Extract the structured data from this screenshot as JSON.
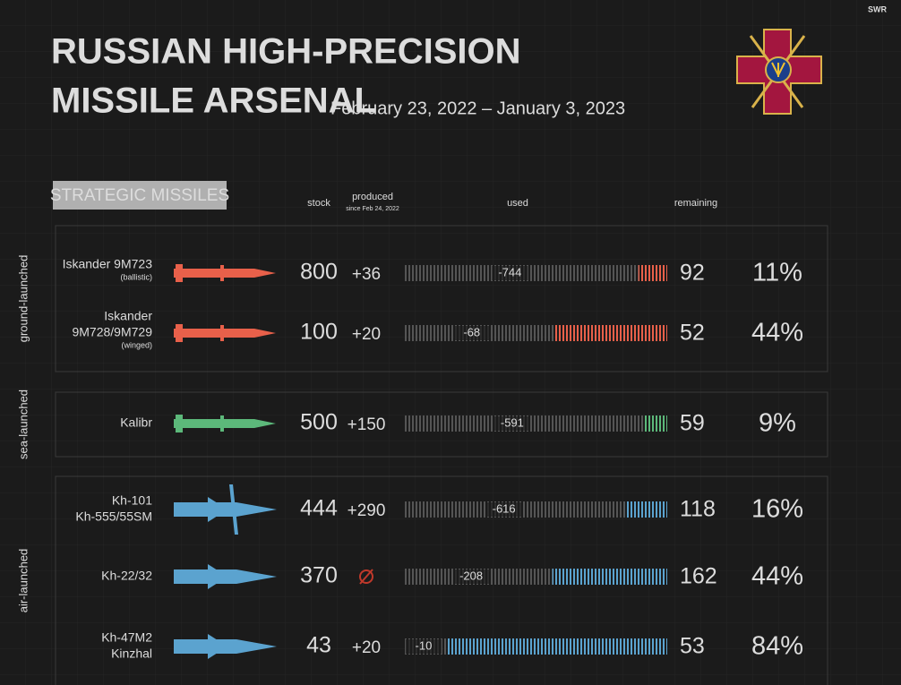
{
  "logo": "SWR",
  "header": {
    "title_line1": "RUSSIAN HIGH-PRECISION",
    "title_line2": "MISSILE ARSENAL",
    "dates": "February 23, 2022 – January 3, 2023"
  },
  "section_title": "STRATEGIC MISSILES",
  "columns": {
    "stock": "stock",
    "produced": "produced",
    "produced_note": "since Feb 24, 2022",
    "used": "used",
    "remaining": "remaining"
  },
  "groups": [
    {
      "label": "ground-launched",
      "color": "#e8604a",
      "rows": [
        {
          "name": [
            "Iskander 9M723"
          ],
          "note": "(ballistic)",
          "stock": 800,
          "produced": "+36",
          "used": -744,
          "remaining": 92,
          "share": "11%"
        },
        {
          "name": [
            "Iskander",
            "9M728/9M729"
          ],
          "note": "(winged)",
          "stock": 100,
          "produced": "+20",
          "used": -68,
          "remaining": 52,
          "share": "44%"
        }
      ]
    },
    {
      "label": "sea-launched",
      "color": "#5cb87a",
      "rows": [
        {
          "name": [
            "Kalibr"
          ],
          "stock": 500,
          "produced": "+150",
          "used": -591,
          "remaining": 59,
          "share": "9%"
        }
      ]
    },
    {
      "label": "air-launched",
      "color": "#5ba3cf",
      "rows": [
        {
          "name": [
            "Kh-101",
            "Kh-555/55SM"
          ],
          "stock": 444,
          "produced": "+290",
          "used": -616,
          "remaining": 118,
          "share": "16%"
        },
        {
          "name": [
            "Kh-22/32"
          ],
          "stock": 370,
          "produced": null,
          "used": -208,
          "remaining": 162,
          "share": "44%"
        },
        {
          "name": [
            "Kh-47M2",
            "Kinzhal"
          ],
          "stock": 43,
          "produced": "+20",
          "used": -10,
          "remaining": 53,
          "share": "84%"
        }
      ]
    }
  ]
}
